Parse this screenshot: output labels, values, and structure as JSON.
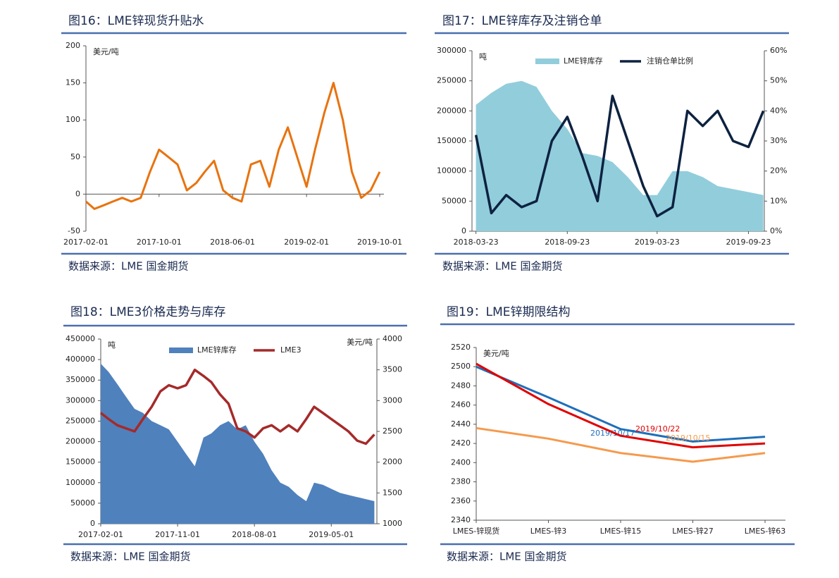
{
  "chart_data": [
    {
      "type": "line",
      "title": "图16：LME锌现货升贴水",
      "source": "数据来源：LME 国金期货",
      "ylabel": "美元/吨",
      "x": [
        "2017-02-01",
        "2017-03-01",
        "2017-04-01",
        "2017-05-01",
        "2017-06-01",
        "2017-07-01",
        "2017-08-01",
        "2017-09-01",
        "2017-10-01",
        "2017-11-01",
        "2017-12-01",
        "2018-01-01",
        "2018-02-01",
        "2018-03-01",
        "2018-04-01",
        "2018-05-01",
        "2018-06-01",
        "2018-07-01",
        "2018-08-01",
        "2018-09-01",
        "2018-10-01",
        "2018-11-01",
        "2018-12-01",
        "2019-01-01",
        "2019-02-01",
        "2019-03-01",
        "2019-04-01",
        "2019-05-01",
        "2019-06-01",
        "2019-07-01",
        "2019-08-01",
        "2019-09-01",
        "2019-10-01"
      ],
      "series": [
        {
          "name": "现货升贴水",
          "color": "#e8730f",
          "values": [
            -10,
            -20,
            -15,
            -10,
            -5,
            -10,
            -5,
            30,
            60,
            50,
            40,
            5,
            15,
            30,
            45,
            5,
            -5,
            -10,
            40,
            45,
            10,
            60,
            90,
            50,
            10,
            60,
            110,
            150,
            100,
            30,
            -5,
            5,
            30
          ]
        }
      ],
      "xlim": [
        "2017-02-01",
        "2019-10-15"
      ],
      "xticks": [
        "2017-02-01",
        "2017-10-01",
        "2018-06-01",
        "2019-02-01",
        "2019-10-01"
      ],
      "ylim": [
        -50,
        200
      ],
      "yticks": [
        -50,
        0,
        50,
        100,
        150,
        200
      ],
      "legend": false
    },
    {
      "type": "combo",
      "title": "图17：LME锌库存及注销仓单",
      "source": "数据来源：LME 国金期货",
      "ylabel": "吨",
      "x": [
        "2018-03-23",
        "2018-04-23",
        "2018-05-23",
        "2018-06-23",
        "2018-07-23",
        "2018-08-23",
        "2018-09-23",
        "2018-10-23",
        "2018-11-23",
        "2018-12-23",
        "2019-01-23",
        "2019-02-23",
        "2019-03-23",
        "2019-04-23",
        "2019-05-23",
        "2019-06-23",
        "2019-07-23",
        "2019-08-23",
        "2019-09-23",
        "2019-10-23"
      ],
      "series": [
        {
          "name": "LME锌库存",
          "color": "#92cddc",
          "style": "area",
          "values": [
            210000,
            230000,
            245000,
            250000,
            240000,
            200000,
            170000,
            130000,
            125000,
            115000,
            90000,
            60000,
            60000,
            100000,
            100000,
            90000,
            75000,
            70000,
            65000,
            60000
          ]
        },
        {
          "name": "注销仓单比例",
          "color": "#0d2240",
          "style": "line",
          "axis": "y2",
          "values": [
            32,
            6,
            12,
            8,
            10,
            30,
            38,
            25,
            10,
            45,
            30,
            15,
            5,
            8,
            40,
            35,
            40,
            30,
            28,
            40
          ]
        }
      ],
      "xlim": [
        "2018-03-15",
        "2019-10-25"
      ],
      "xticks": [
        "2018-03-23",
        "2018-09-23",
        "2019-03-23",
        "2019-09-23"
      ],
      "ylim": [
        0,
        300000
      ],
      "yticks": [
        0,
        50000,
        100000,
        150000,
        200000,
        250000,
        300000
      ],
      "y2lim": [
        0,
        60
      ],
      "y2ticks": [
        {
          "value": 0,
          "label": "0%"
        },
        {
          "value": 10,
          "label": "10%"
        },
        {
          "value": 20,
          "label": "20%"
        },
        {
          "value": 30,
          "label": "30%"
        },
        {
          "value": 40,
          "label": "40%"
        },
        {
          "value": 50,
          "label": "50%"
        },
        {
          "value": 60,
          "label": "60%"
        }
      ],
      "legend": true
    },
    {
      "type": "combo",
      "title": "图18：LME3价格走势与库存",
      "source": "数据来源：LME 国金期货",
      "ylabel": "吨",
      "y2label": "美元/吨",
      "x": [
        "2017-02-01",
        "2017-03-01",
        "2017-04-01",
        "2017-05-01",
        "2017-06-01",
        "2017-07-01",
        "2017-08-01",
        "2017-09-01",
        "2017-10-01",
        "2017-11-01",
        "2017-12-01",
        "2018-01-01",
        "2018-02-01",
        "2018-03-01",
        "2018-04-01",
        "2018-05-01",
        "2018-06-01",
        "2018-07-01",
        "2018-08-01",
        "2018-09-01",
        "2018-10-01",
        "2018-11-01",
        "2018-12-01",
        "2019-01-01",
        "2019-02-01",
        "2019-03-01",
        "2019-04-01",
        "2019-05-01",
        "2019-06-01",
        "2019-07-01",
        "2019-08-01",
        "2019-09-01",
        "2019-10-01"
      ],
      "series": [
        {
          "name": "LME锌库存",
          "color": "#4f81bd",
          "style": "area",
          "values": [
            390000,
            370000,
            340000,
            310000,
            280000,
            270000,
            250000,
            240000,
            230000,
            200000,
            170000,
            140000,
            210000,
            220000,
            240000,
            250000,
            230000,
            240000,
            200000,
            170000,
            130000,
            100000,
            90000,
            70000,
            55000,
            100000,
            95000,
            85000,
            75000,
            70000,
            65000,
            60000,
            55000
          ]
        },
        {
          "name": "LME3",
          "color": "#a52a2a",
          "style": "line",
          "axis": "y2",
          "values": [
            2800,
            2700,
            2600,
            2550,
            2500,
            2700,
            2900,
            3150,
            3250,
            3200,
            3250,
            3500,
            3400,
            3300,
            3100,
            2950,
            2550,
            2500,
            2400,
            2550,
            2600,
            2500,
            2600,
            2500,
            2700,
            2900,
            2800,
            2700,
            2600,
            2500,
            2350,
            2300,
            2450
          ]
        }
      ],
      "xlim": [
        "2017-02-01",
        "2019-10-10"
      ],
      "xticks": [
        "2017-02-01",
        "2017-11-01",
        "2018-08-01",
        "2019-05-01"
      ],
      "ylim": [
        0,
        450000
      ],
      "yticks": [
        0,
        50000,
        100000,
        150000,
        200000,
        250000,
        300000,
        350000,
        400000,
        450000
      ],
      "y2lim": [
        1000,
        4000
      ],
      "y2ticks": [
        1000,
        1500,
        2000,
        2500,
        3000,
        3500,
        4000
      ],
      "legend": true
    },
    {
      "type": "category-line",
      "title": "图19：LME锌期限结构",
      "source": "数据来源：LME 国金期货",
      "ylabel": "美元/吨",
      "categories": [
        "LMES-锌现货",
        "LMES-锌3",
        "LMES-锌15",
        "LMES-锌27",
        "LMES-锌63"
      ],
      "series": [
        {
          "name": "2019/10/17",
          "color": "#1f6fba",
          "values": [
            2500,
            2468,
            2435,
            2422,
            2427
          ]
        },
        {
          "name": "2019/10/22",
          "color": "#e00000",
          "values": [
            2503,
            2461,
            2428,
            2416,
            2420
          ]
        },
        {
          "name": "2019/10/15",
          "color": "#f59a4d",
          "values": [
            2436,
            2425,
            2410,
            2401,
            2410
          ]
        }
      ],
      "ylim": [
        2340,
        2520
      ],
      "yticks": [
        2340,
        2360,
        2380,
        2400,
        2420,
        2440,
        2460,
        2480,
        2500,
        2520
      ],
      "legend": false
    }
  ]
}
